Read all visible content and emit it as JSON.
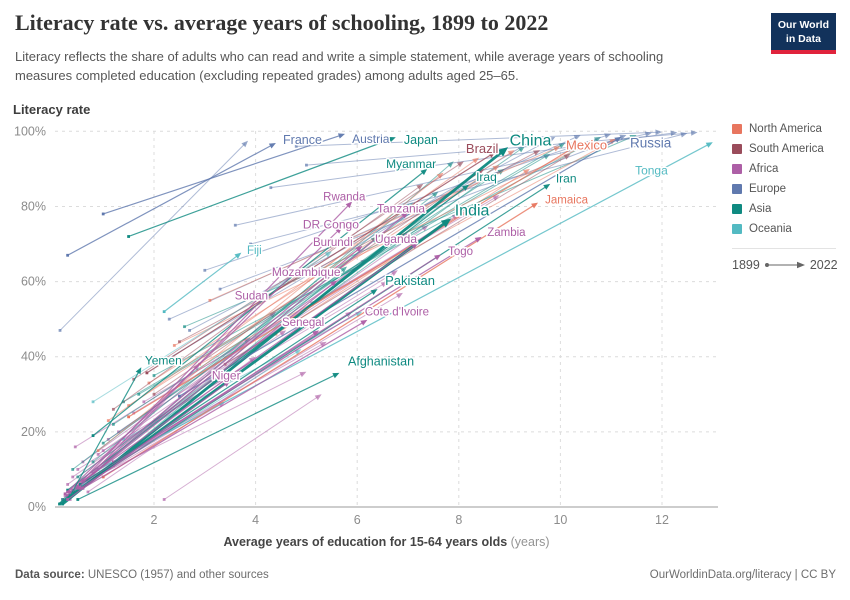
{
  "header": {
    "title": "Literacy rate vs. average years of schooling, 1899 to 2022",
    "subtitle": "Literacy reflects the share of adults who can read and write a simple statement, while average years of schooling measures completed education (excluding repeated grades) among adults aged 25–65.",
    "logo_line1": "Our World",
    "logo_line2": "in Data"
  },
  "footer": {
    "source_label": "Data source:",
    "source_text": " UNESCO (1957) and other sources",
    "right_text": "OurWorldinData.org/literacy | CC BY"
  },
  "chart_data": {
    "type": "scatter",
    "subtype": "connected-scatter-1899-2022",
    "title": "Literacy rate vs. average years of schooling, 1899 to 2022",
    "xlabel": "Average years of education for 15-64 years olds",
    "xlabel_unit": " (years)",
    "ylabel": "Literacy rate",
    "x_ticks": [
      2,
      4,
      6,
      8,
      10,
      12
    ],
    "y_ticks": [
      0,
      20,
      40,
      60,
      80,
      100
    ],
    "y_tick_suffix": "%",
    "xlim": [
      0,
      13.1
    ],
    "ylim": [
      0,
      100
    ],
    "grid": "dashed",
    "legend_position": "right",
    "time_note": {
      "start": "1899",
      "end": "2022"
    },
    "continents": {
      "North America": "#e8765f",
      "South America": "#9a4c5b",
      "Africa": "#ad5fa6",
      "Europe": "#6079ae",
      "Asia": "#0f8a81",
      "Oceania": "#53bac2"
    },
    "legend": [
      "North America",
      "South America",
      "Africa",
      "Europe",
      "Asia",
      "Oceania"
    ],
    "series": [
      {
        "name": "France",
        "continent": "Europe",
        "start": [
          0.3,
          67
        ],
        "end": [
          4.4,
          96.9
        ],
        "label": [
          4.54,
          97.7
        ],
        "size": 12.5
      },
      {
        "name": "Austria",
        "continent": "Europe",
        "start": [
          1.0,
          78
        ],
        "end": [
          5.76,
          99.3
        ],
        "label": [
          5.9,
          97.9
        ],
        "size": 12
      },
      {
        "name": "Japan",
        "continent": "Asia",
        "start": [
          1.5,
          72
        ],
        "end": [
          6.76,
          98.4
        ],
        "label": [
          6.92,
          97.7
        ],
        "size": 12.5
      },
      {
        "name": "Brazil",
        "continent": "South America",
        "start": [
          1.86,
          35.7
        ],
        "end": [
          8.72,
          94.5
        ],
        "label": [
          8.14,
          95.3
        ],
        "size": 13
      },
      {
        "name": "China",
        "continent": "Asia",
        "start": [
          0.2,
          0.8
        ],
        "end": [
          8.97,
          95.8
        ],
        "label": [
          9.0,
          97.3
        ],
        "size": 16,
        "big": true
      },
      {
        "name": "Mexico",
        "continent": "North America",
        "start": [
          1.5,
          24
        ],
        "end": [
          10.4,
          96.8
        ],
        "label": [
          10.11,
          96.2
        ],
        "size": 13
      },
      {
        "name": "Russia",
        "continent": "Europe",
        "start": [
          2.5,
          29.5
        ],
        "end": [
          11.2,
          98.5
        ],
        "label": [
          11.37,
          96.8
        ],
        "size": 13.5
      },
      {
        "name": "Myanmar",
        "continent": "Asia",
        "start": [
          0.8,
          19
        ],
        "end": [
          7.38,
          90
        ],
        "label": [
          6.57,
          91.3
        ],
        "size": 12
      },
      {
        "name": "Iraq",
        "continent": "Asia",
        "start": [
          0.3,
          4.5
        ],
        "end": [
          8.2,
          85.8
        ],
        "label": [
          8.34,
          87.8
        ],
        "size": 12
      },
      {
        "name": "Iran",
        "continent": "Asia",
        "start": [
          0.42,
          4
        ],
        "end": [
          9.8,
          86
        ],
        "label": [
          9.91,
          87.5
        ],
        "size": 12
      },
      {
        "name": "Tonga",
        "continent": "Oceania",
        "start": [
          0.9,
          10
        ],
        "end": [
          13.0,
          97.1
        ],
        "label": [
          11.47,
          89.6
        ],
        "size": 12
      },
      {
        "name": "Jamaica",
        "continent": "North America",
        "start": [
          1.0,
          8
        ],
        "end": [
          9.56,
          81
        ],
        "label": [
          9.7,
          81.9
        ],
        "size": 11.5
      },
      {
        "name": "Rwanda",
        "continent": "Africa",
        "start": [
          0.3,
          3
        ],
        "end": [
          5.9,
          81.3
        ],
        "label": [
          5.33,
          82.6
        ],
        "size": 11.5
      },
      {
        "name": "Tanzania",
        "continent": "Africa",
        "start": [
          0.4,
          4.5
        ],
        "end": [
          7.0,
          78.5
        ],
        "label": [
          6.39,
          79.4
        ],
        "size": 12
      },
      {
        "name": "DR Congo",
        "continent": "Africa",
        "start": [
          0.25,
          3.5
        ],
        "end": [
          5.7,
          74.5
        ],
        "label": [
          4.93,
          75.2
        ],
        "size": 12
      },
      {
        "name": "India",
        "continent": "Asia",
        "start": [
          0.14,
          0.8
        ],
        "end": [
          7.85,
          76.8
        ],
        "label": [
          7.92,
          78.6
        ],
        "size": 16,
        "big": true
      },
      {
        "name": "Zambia",
        "continent": "Africa",
        "start": [
          1.2,
          12
        ],
        "end": [
          8.45,
          71.9
        ],
        "label": [
          8.56,
          73.2
        ],
        "size": 11.5
      },
      {
        "name": "Fiji",
        "continent": "Oceania",
        "start": [
          2.2,
          52
        ],
        "end": [
          3.72,
          67.7
        ],
        "label": [
          3.83,
          68.4
        ],
        "size": 11.5
      },
      {
        "name": "Burundi",
        "continent": "Africa",
        "start": [
          0.3,
          4
        ],
        "end": [
          6.1,
          69.5
        ],
        "label": [
          5.13,
          70.6
        ],
        "size": 11.5
      },
      {
        "name": "Uganda",
        "continent": "Africa",
        "start": [
          0.6,
          7
        ],
        "end": [
          7.2,
          70.3
        ],
        "label": [
          6.35,
          71.4
        ],
        "size": 12
      },
      {
        "name": "Togo",
        "continent": "Africa",
        "start": [
          0.5,
          5.5
        ],
        "end": [
          7.65,
          67.2
        ],
        "label": [
          7.79,
          68.1
        ],
        "size": 11.5
      },
      {
        "name": "Mozambique",
        "continent": "Africa",
        "start": [
          0.35,
          4
        ],
        "end": [
          5.6,
          60.3
        ],
        "label": [
          4.32,
          62.6
        ],
        "size": 12
      },
      {
        "name": "Pakistan",
        "continent": "Asia",
        "start": [
          0.55,
          6
        ],
        "end": [
          6.4,
          58
        ],
        "label": [
          6.55,
          60.2
        ],
        "size": 13
      },
      {
        "name": "Sudan",
        "continent": "Africa",
        "start": [
          0.5,
          5
        ],
        "end": [
          4.22,
          56.5
        ],
        "label": [
          3.59,
          56.3
        ],
        "size": 11.5
      },
      {
        "name": "Cote d'Ivoire",
        "continent": "Africa",
        "start": [
          0.6,
          5
        ],
        "end": [
          6.2,
          49.8
        ],
        "label": [
          6.15,
          52.0
        ],
        "size": 11.5
      },
      {
        "name": "Senegal",
        "continent": "Africa",
        "start": [
          0.55,
          5
        ],
        "end": [
          5.25,
          47
        ],
        "label": [
          4.52,
          49.3
        ],
        "size": 11.5
      },
      {
        "name": "Yemen",
        "continent": "Asia",
        "start": [
          0.35,
          3
        ],
        "end": [
          1.75,
          37.2
        ],
        "label": [
          1.82,
          39.0
        ],
        "size": 12
      },
      {
        "name": "Niger",
        "continent": "Africa",
        "start": [
          0.3,
          2
        ],
        "end": [
          3.5,
          33.6
        ],
        "label": [
          3.14,
          35.0
        ],
        "size": 12
      },
      {
        "name": "Afghanistan",
        "continent": "Asia",
        "start": [
          0.5,
          2
        ],
        "end": [
          5.65,
          35.7
        ],
        "label": [
          5.82,
          38.7
        ],
        "size": 12.5
      }
    ],
    "background_series": [
      [
        "Africa",
        0.2,
        2,
        4.0,
        40
      ],
      [
        "Africa",
        0.3,
        6,
        5.2,
        55
      ],
      [
        "Africa",
        0.5,
        10,
        6.8,
        63
      ],
      [
        "Africa",
        0.7,
        4,
        5.9,
        52
      ],
      [
        "Africa",
        0.9,
        14,
        7.4,
        75
      ],
      [
        "Africa",
        0.4,
        8,
        4.6,
        47
      ],
      [
        "Africa",
        0.6,
        12,
        6.2,
        66
      ],
      [
        "Africa",
        1.1,
        18,
        8.0,
        78
      ],
      [
        "Africa",
        0.25,
        3,
        3.4,
        28
      ],
      [
        "Africa",
        0.8,
        9,
        5.4,
        44
      ],
      [
        "Africa",
        1.3,
        20,
        7.0,
        73
      ],
      [
        "Africa",
        0.5,
        5,
        4.4,
        52
      ],
      [
        "Africa",
        1.0,
        15,
        6.6,
        60
      ],
      [
        "Africa",
        0.35,
        2,
        2.9,
        38
      ],
      [
        "Africa",
        1.6,
        25,
        8.3,
        80
      ],
      [
        "Africa",
        0.7,
        7,
        5.0,
        36
      ],
      [
        "Africa",
        1.2,
        11,
        6.9,
        57
      ],
      [
        "Africa",
        2.2,
        2,
        5.3,
        30
      ],
      [
        "Africa",
        0.45,
        16,
        3.9,
        45
      ],
      [
        "Africa",
        1.8,
        28,
        8.8,
        83
      ],
      [
        "Asia",
        0.3,
        3,
        7.9,
        92
      ],
      [
        "Asia",
        0.5,
        8,
        8.6,
        88
      ],
      [
        "Asia",
        1.0,
        17,
        9.3,
        96
      ],
      [
        "Asia",
        0.2,
        2,
        6.4,
        72
      ],
      [
        "Asia",
        1.4,
        28,
        10.1,
        97
      ],
      [
        "Asia",
        0.8,
        12,
        7.1,
        81
      ],
      [
        "Asia",
        2.0,
        35,
        10.8,
        98.5
      ],
      [
        "Asia",
        0.6,
        5,
        5.8,
        64
      ],
      [
        "Asia",
        1.7,
        30,
        9.8,
        94
      ],
      [
        "Asia",
        1.2,
        22,
        8.9,
        90
      ],
      [
        "Asia",
        2.6,
        48,
        11.5,
        99
      ],
      [
        "Asia",
        0.4,
        10,
        7.6,
        84
      ],
      [
        "Europe",
        0.15,
        47,
        3.85,
        97.5
      ],
      [
        "Europe",
        2.3,
        50,
        10.4,
        99
      ],
      [
        "Europe",
        3.0,
        63,
        11.0,
        99.3
      ],
      [
        "Europe",
        3.6,
        75,
        11.8,
        99.6
      ],
      [
        "Europe",
        4.3,
        85,
        12.3,
        99.7
      ],
      [
        "Europe",
        2.7,
        47,
        9.9,
        98.5
      ],
      [
        "Europe",
        5.0,
        91,
        12.7,
        99.7
      ],
      [
        "Europe",
        3.3,
        58,
        11.3,
        99
      ],
      [
        "Europe",
        4.8,
        96,
        12.0,
        99.8
      ],
      [
        "Europe",
        2.1,
        38,
        9.5,
        98
      ],
      [
        "Europe",
        3.9,
        70,
        12.5,
        99.5
      ],
      [
        "North America",
        1.1,
        23,
        8.4,
        93
      ],
      [
        "North America",
        1.9,
        33,
        9.1,
        95
      ],
      [
        "North America",
        2.4,
        43,
        10.6,
        97
      ],
      [
        "North America",
        0.9,
        15,
        7.7,
        89
      ],
      [
        "North America",
        3.1,
        55,
        10.0,
        96
      ],
      [
        "North America",
        1.5,
        27,
        8.8,
        91
      ],
      [
        "North America",
        4.4,
        46,
        9.4,
        90
      ],
      [
        "North America",
        2.9,
        38,
        11.1,
        98
      ],
      [
        "South America",
        1.6,
        34,
        8.1,
        92
      ],
      [
        "South America",
        2.5,
        44,
        9.6,
        95
      ],
      [
        "South America",
        1.2,
        26,
        7.3,
        86
      ],
      [
        "South America",
        3.4,
        38,
        10.2,
        94
      ],
      [
        "South America",
        2.0,
        30,
        8.5,
        90
      ],
      [
        "Oceania",
        0.8,
        28,
        5.5,
        68
      ],
      [
        "Oceania",
        0.6,
        6,
        4.9,
        42
      ],
      [
        "Oceania",
        1.4,
        18,
        6.1,
        52
      ]
    ]
  }
}
